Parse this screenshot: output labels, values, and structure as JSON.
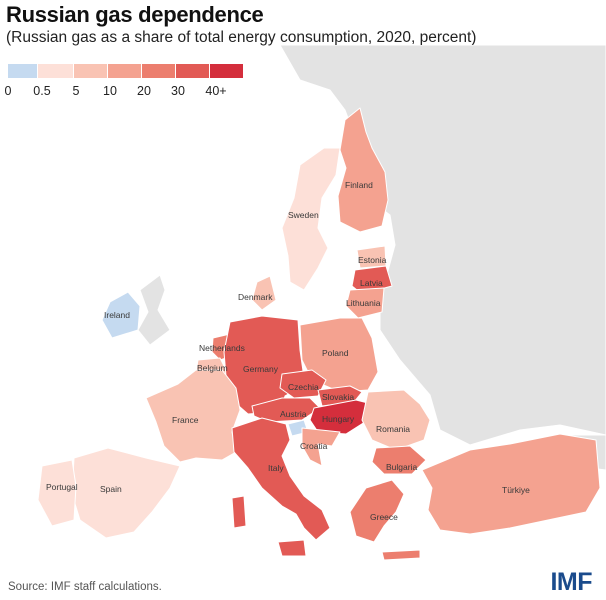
{
  "title": "Russian gas dependence",
  "subtitle": "(Russian gas as a share of total energy consumption, 2020, percent)",
  "legend": {
    "labels": [
      "0",
      "0.5",
      "5",
      "10",
      "20",
      "30",
      "40+"
    ],
    "colors": [
      "#c5daf0",
      "#fde0d8",
      "#f9c3b3",
      "#f4a290",
      "#ec7e6e",
      "#e25a55",
      "#d42e3c"
    ]
  },
  "countries": [
    {
      "name": "Finland",
      "label": "Finland",
      "bin": 3
    },
    {
      "name": "Sweden",
      "label": "Sweden",
      "bin": 1
    },
    {
      "name": "Estonia",
      "label": "Estonia",
      "bin": 2
    },
    {
      "name": "Latvia",
      "label": "Latvia",
      "bin": 5
    },
    {
      "name": "Lithuania",
      "label": "Lithuania",
      "bin": 3
    },
    {
      "name": "Denmark",
      "label": "Denmark",
      "bin": 2
    },
    {
      "name": "Ireland",
      "label": "Ireland",
      "bin": 0
    },
    {
      "name": "Netherlands",
      "label": "Netherlands",
      "bin": 4
    },
    {
      "name": "Belgium",
      "label": "Belgium",
      "bin": 2
    },
    {
      "name": "Germany",
      "label": "Germany",
      "bin": 5
    },
    {
      "name": "Poland",
      "label": "Poland",
      "bin": 3
    },
    {
      "name": "Czechia",
      "label": "Czechia",
      "bin": 5
    },
    {
      "name": "Slovakia",
      "label": "Slovakia",
      "bin": 5
    },
    {
      "name": "Austria",
      "label": "Austria",
      "bin": 5
    },
    {
      "name": "Hungary",
      "label": "Hungary",
      "bin": 6
    },
    {
      "name": "France",
      "label": "France",
      "bin": 2
    },
    {
      "name": "Romania",
      "label": "Romania",
      "bin": 2
    },
    {
      "name": "Croatia",
      "label": "Croatia",
      "bin": 3
    },
    {
      "name": "Slovenia",
      "label": "",
      "bin": 0
    },
    {
      "name": "Italy",
      "label": "Italy",
      "bin": 5
    },
    {
      "name": "Bulgaria",
      "label": "Bulgaria",
      "bin": 4
    },
    {
      "name": "Portugal",
      "label": "Portugal",
      "bin": 1
    },
    {
      "name": "Spain",
      "label": "Spain",
      "bin": 1
    },
    {
      "name": "Greece",
      "label": "Greece",
      "bin": 4
    },
    {
      "name": "Turkiye",
      "label": "Türkiye",
      "bin": 3
    }
  ],
  "source": "Source: IMF staff calculations.",
  "logo": "IMF"
}
